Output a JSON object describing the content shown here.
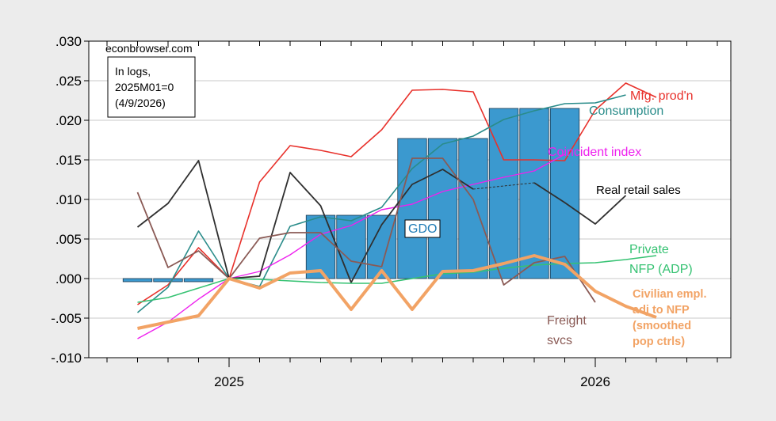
{
  "source": "econbrowser.com",
  "note_lines": [
    "In logs,",
    "2025M01=0",
    "(4/9/2026)"
  ],
  "chart_data": {
    "type": "line",
    "y_range": [
      -0.01,
      0.03
    ],
    "y_ticks": [
      ".030",
      ".025",
      ".020",
      ".015",
      ".010",
      ".005",
      ".000",
      "-.005",
      "-.010"
    ],
    "y_tick_values": [
      0.03,
      0.025,
      0.02,
      0.015,
      0.01,
      0.005,
      0.0,
      -0.005,
      -0.01
    ],
    "x_range": [
      "2024-09",
      "2026-06"
    ],
    "x_ticks": [
      "2025",
      "2026"
    ],
    "x_tick_dates": [
      "2025-01",
      "2026-01"
    ],
    "grid": true,
    "series": [
      {
        "name": "GDO",
        "kind": "bar",
        "color": "#3b99cf",
        "label": [
          "GDO"
        ],
        "segments": [
          {
            "start": "2024-10",
            "end": "2024-12",
            "value": -0.0004
          },
          {
            "start": "2025-04",
            "end": "2025-06",
            "value": 0.008
          },
          {
            "start": "2025-07",
            "end": "2025-09",
            "value": 0.0177
          },
          {
            "start": "2025-10",
            "end": "2025-12",
            "value": 0.0215
          }
        ]
      },
      {
        "name": "Mfg. prod'n",
        "color": "#e8312b",
        "width": 1.6,
        "label": [
          "Mfg. prod'n"
        ],
        "points": [
          [
            "2024-10",
            -0.0033
          ],
          [
            "2024-11",
            -0.0008
          ],
          [
            "2024-12",
            0.0039
          ],
          [
            "2025-01",
            0.0
          ],
          [
            "2025-02",
            0.0122
          ],
          [
            "2025-03",
            0.0168
          ],
          [
            "2025-04",
            0.0162
          ],
          [
            "2025-05",
            0.0154
          ],
          [
            "2025-06",
            0.0188
          ],
          [
            "2025-07",
            0.0238
          ],
          [
            "2025-08",
            0.0239
          ],
          [
            "2025-09",
            0.0236
          ],
          [
            "2025-10",
            0.015
          ],
          [
            "2025-11",
            0.015
          ],
          [
            "2025-12",
            0.0149
          ],
          [
            "2026-01",
            0.0213
          ],
          [
            "2026-02",
            0.0247
          ],
          [
            "2026-03",
            0.0229
          ]
        ]
      },
      {
        "name": "Consumption",
        "color": "#2a8c8a",
        "width": 1.6,
        "label": [
          "Consumption"
        ],
        "points": [
          [
            "2024-10",
            -0.0043
          ],
          [
            "2024-11",
            -0.0011
          ],
          [
            "2024-12",
            0.006
          ],
          [
            "2025-01",
            0.0
          ],
          [
            "2025-02",
            -0.001
          ],
          [
            "2025-03",
            0.0066
          ],
          [
            "2025-04",
            0.0078
          ],
          [
            "2025-05",
            0.0073
          ],
          [
            "2025-06",
            0.009
          ],
          [
            "2025-07",
            0.0139
          ],
          [
            "2025-08",
            0.017
          ],
          [
            "2025-09",
            0.018
          ],
          [
            "2025-10",
            0.0201
          ],
          [
            "2025-11",
            0.0212
          ],
          [
            "2025-12",
            0.0221
          ],
          [
            "2026-01",
            0.0222
          ],
          [
            "2026-02",
            0.0232
          ]
        ]
      },
      {
        "name": "Coincident index",
        "color": "#ee22ee",
        "width": 1.4,
        "label": [
          "Coincident index"
        ],
        "points": [
          [
            "2024-10",
            -0.0076
          ],
          [
            "2024-11",
            -0.0055
          ],
          [
            "2024-12",
            -0.0026
          ],
          [
            "2025-01",
            0.0
          ],
          [
            "2025-02",
            0.0009
          ],
          [
            "2025-03",
            0.003
          ],
          [
            "2025-04",
            0.0056
          ],
          [
            "2025-05",
            0.0067
          ],
          [
            "2025-06",
            0.0087
          ],
          [
            "2025-07",
            0.0094
          ],
          [
            "2025-08",
            0.011
          ],
          [
            "2025-09",
            0.0119
          ],
          [
            "2025-10",
            0.0128
          ],
          [
            "2025-11",
            0.0136
          ],
          [
            "2025-12",
            0.0157
          ]
        ]
      },
      {
        "name": "Real retail sales",
        "color": "#2f2f2f",
        "width": 1.8,
        "label": [
          "Real retail sales"
        ],
        "points": [
          [
            "2024-10",
            0.0065
          ],
          [
            "2024-11",
            0.0095
          ],
          [
            "2024-12",
            0.0149
          ],
          [
            "2025-01",
            0.0
          ],
          [
            "2025-02",
            0.0003
          ],
          [
            "2025-03",
            0.0134
          ],
          [
            "2025-04",
            0.0092
          ],
          [
            "2025-05",
            -0.0005
          ],
          [
            "2025-06",
            0.0068
          ],
          [
            "2025-07",
            0.0119
          ],
          [
            "2025-08",
            0.0138
          ],
          [
            "2025-09",
            0.0113
          ],
          [
            "2025-10",
            null
          ],
          [
            "2025-11",
            0.0121
          ],
          [
            "2025-12",
            0.0096
          ],
          [
            "2026-01",
            0.0069
          ],
          [
            "2026-02",
            0.0105
          ]
        ],
        "gap_fill": [
          [
            "2025-09",
            0.0113
          ],
          [
            "2025-11",
            0.0121
          ]
        ]
      },
      {
        "name": "Private NFP (ADP)",
        "color": "#35c272",
        "width": 1.6,
        "label": [
          "Private",
          "NFP (ADP)"
        ],
        "points": [
          [
            "2024-10",
            -0.003
          ],
          [
            "2024-11",
            -0.0024
          ],
          [
            "2024-12",
            -0.0012
          ],
          [
            "2025-01",
            0.0
          ],
          [
            "2025-02",
            -0.0001
          ],
          [
            "2025-03",
            -0.0003
          ],
          [
            "2025-04",
            -0.0005
          ],
          [
            "2025-05",
            -0.0006
          ],
          [
            "2025-06",
            -0.0006
          ],
          [
            "2025-07",
            0.0
          ],
          [
            "2025-08",
            0.0006
          ],
          [
            "2025-09",
            0.0008
          ],
          [
            "2025-10",
            0.0013
          ],
          [
            "2025-11",
            0.0017
          ],
          [
            "2025-12",
            0.0019
          ],
          [
            "2026-01",
            0.002
          ],
          [
            "2026-02",
            0.0024
          ],
          [
            "2026-03",
            0.0029
          ]
        ]
      },
      {
        "name": "Freight svcs",
        "color": "#8a5a55",
        "width": 1.8,
        "label": [
          "Freight",
          "svcs"
        ],
        "points": [
          [
            "2024-10",
            0.0109
          ],
          [
            "2024-11",
            0.0014
          ],
          [
            "2024-12",
            0.0035
          ],
          [
            "2025-01",
            0.0
          ],
          [
            "2025-02",
            0.0051
          ],
          [
            "2025-03",
            0.0058
          ],
          [
            "2025-04",
            0.0058
          ],
          [
            "2025-05",
            0.0022
          ],
          [
            "2025-06",
            0.0015
          ],
          [
            "2025-07",
            0.0152
          ],
          [
            "2025-08",
            0.0152
          ],
          [
            "2025-09",
            0.01
          ],
          [
            "2025-10",
            -0.0008
          ],
          [
            "2025-11",
            0.002
          ],
          [
            "2025-12",
            0.0028
          ],
          [
            "2026-01",
            -0.003
          ]
        ]
      },
      {
        "name": "Civilian empl. adj to NFP (smoothed pop ctrls)",
        "color": "#f2a365",
        "width": 4,
        "label": [
          "Civilian empl.",
          "adj to NFP",
          "(smoothed",
          "pop ctrls)"
        ],
        "points": [
          [
            "2024-10",
            -0.0063
          ],
          [
            "2024-11",
            -0.0055
          ],
          [
            "2024-12",
            -0.0047
          ],
          [
            "2025-01",
            0.0
          ],
          [
            "2025-02",
            -0.0012
          ],
          [
            "2025-03",
            0.0007
          ],
          [
            "2025-04",
            0.001
          ],
          [
            "2025-05",
            -0.0039
          ],
          [
            "2025-06",
            0.001
          ],
          [
            "2025-07",
            -0.0039
          ],
          [
            "2025-08",
            0.0009
          ],
          [
            "2025-09",
            0.001
          ],
          [
            "2025-10",
            0.0019
          ],
          [
            "2025-11",
            0.0029
          ],
          [
            "2025-12",
            0.0018
          ],
          [
            "2026-01",
            -0.0016
          ],
          [
            "2026-02",
            -0.0035
          ],
          [
            "2026-03",
            -0.0049
          ]
        ]
      }
    ]
  }
}
